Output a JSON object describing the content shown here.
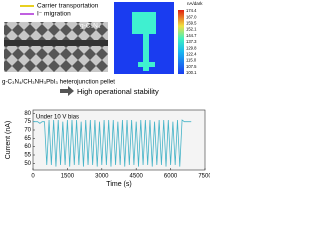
{
  "schematic": {
    "legend": [
      "Carrier transportation",
      "I⁻ migration"
    ],
    "layer_label": "g-C₃N₄",
    "caption": "g-C₃N₄/CH₃NH₃PbI₃ heterojunction pellet"
  },
  "colorbar": {
    "title": "nA/dark",
    "ticks": [
      "174.4",
      "167.0",
      "159.5",
      "152.1",
      "144.7",
      "137.3",
      "129.8",
      "122.4",
      "115.0",
      "107.5",
      "100.1"
    ]
  },
  "arrow_label": "High operational stability",
  "chart_data": {
    "type": "line",
    "annotation": "Under 10 V bias",
    "xlabel": "Time (s)",
    "ylabel": "Current (nA)",
    "x": [
      0,
      100,
      200,
      300,
      400,
      500,
      600,
      700,
      800,
      900,
      1000,
      1100,
      1200,
      1300,
      1400,
      1500,
      1600,
      1700,
      1800,
      1900,
      2000,
      2100,
      2200,
      2300,
      2400,
      2500,
      2600,
      2700,
      2800,
      2900,
      3000,
      3100,
      3200,
      3300,
      3400,
      3500,
      3600,
      3700,
      3800,
      3900,
      4000,
      4100,
      4200,
      4300,
      4400,
      4500,
      4600,
      4700,
      4800,
      4900,
      5000,
      5100,
      5200,
      5300,
      5400,
      5500,
      5600,
      5700,
      5800,
      5900,
      6000,
      6100,
      6200,
      6300,
      6400,
      6500,
      6600,
      6700,
      6800,
      6900
    ],
    "series": [
      {
        "name": "Current",
        "color": "#46b4c8",
        "values": [
          75,
          75,
          75,
          74,
          75,
          75,
          49,
          76,
          49,
          76,
          48,
          76,
          49,
          75,
          49,
          76,
          48,
          76,
          49,
          76,
          49,
          75,
          48,
          76,
          49,
          76,
          49,
          76,
          48,
          75,
          49,
          76,
          49,
          76,
          48,
          76,
          49,
          75,
          49,
          76,
          48,
          76,
          49,
          76,
          49,
          75,
          48,
          76,
          49,
          76,
          49,
          76,
          48,
          75,
          49,
          76,
          49,
          76,
          48,
          76,
          49,
          75,
          49,
          76,
          48,
          76,
          75,
          75,
          75,
          75
        ]
      }
    ],
    "xlim": [
      0,
      7500
    ],
    "xticks": [
      0,
      1500,
      3000,
      4500,
      6000,
      7500
    ],
    "ylim": [
      46,
      82
    ],
    "yticks": [
      50,
      55,
      60,
      65,
      70,
      75,
      80
    ]
  }
}
